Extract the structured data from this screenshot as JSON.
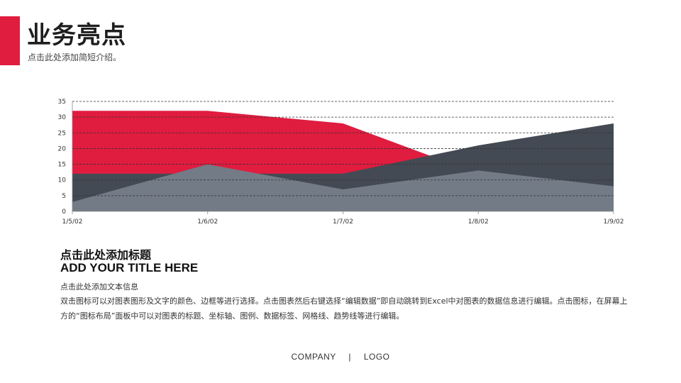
{
  "header": {
    "title": "业务亮点",
    "subtitle": "点击此处添加简短介绍。"
  },
  "colors": {
    "accent": "#e01c3f",
    "dark_gray": "#434a53",
    "mid_gray": "#727b86",
    "grid": "#333333"
  },
  "chart_data": {
    "type": "area",
    "categories": [
      "1/5/02",
      "1/6/02",
      "1/7/02",
      "1/8/02",
      "1/9/02"
    ],
    "series": [
      {
        "values": [
          32,
          32,
          28,
          12,
          12
        ],
        "color": "#e01c3f"
      },
      {
        "values": [
          12,
          12,
          12,
          21,
          28
        ],
        "color": "#434a53"
      },
      {
        "values": [
          3,
          15,
          7,
          13,
          8
        ],
        "color": "#727b86"
      }
    ],
    "yticks": [
      0,
      5,
      10,
      15,
      20,
      25,
      30,
      35
    ],
    "ylim": [
      0,
      35
    ],
    "grid": "dashed horizontal"
  },
  "section": {
    "title_cn": "点击此处添加标题",
    "title_en": "ADD YOUR TITLE HERE",
    "body_heading": "点击此处添加文本信息",
    "body_text": "双击图标可以对图表图形及文字的颜色、边框等进行选择。点击图表然后右键选择“编辑数据”即自动跳转到Excel中对图表的数据信息进行编辑。点击图标，在屏幕上方的“图标布局”面板中可以对图表的标题、坐标轴、图例、数据标签、网格线、趋势线等进行编辑。"
  },
  "footer": {
    "company": "COMPANY",
    "separator": "|",
    "logo": "LOGO"
  }
}
